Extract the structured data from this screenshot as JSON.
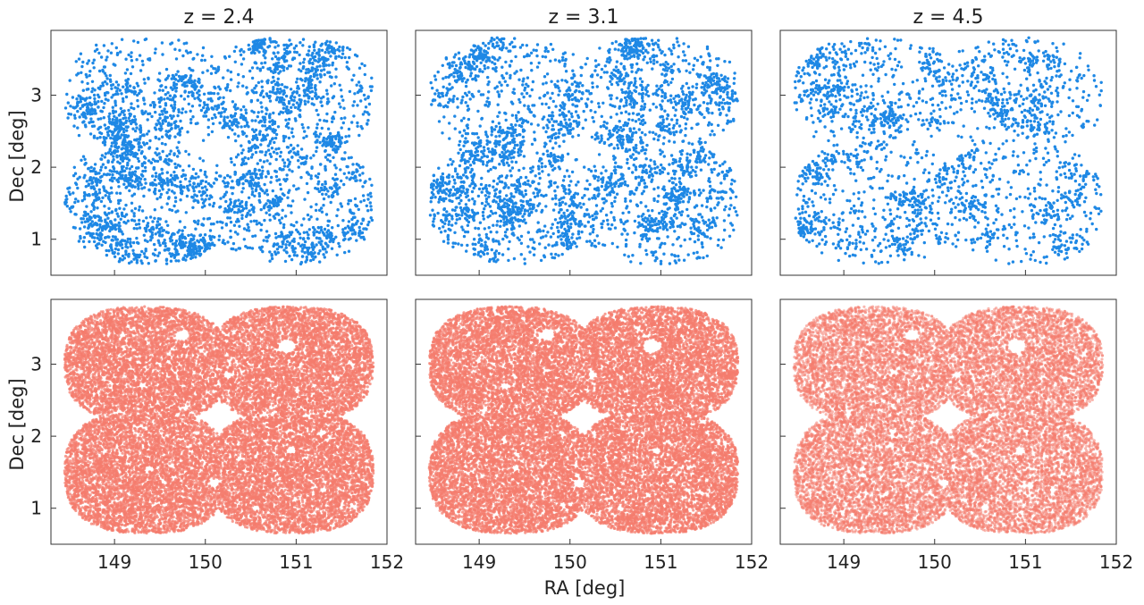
{
  "figure": {
    "xlabel": "RA [deg]",
    "ylabel": "Dec [deg]"
  },
  "chart_data": {
    "type": "scatter",
    "layout": "2 rows x 3 columns, shared axes",
    "colors": {
      "top_row": "#1e88e5",
      "bottom_row": "#f47c6e"
    },
    "xlim": [
      148.3,
      152.0
    ],
    "ylim": [
      0.5,
      3.9
    ],
    "xticks": [
      149,
      150,
      151,
      152
    ],
    "yticks": [
      1,
      2,
      3
    ],
    "grid": false,
    "legend": "none",
    "columns": [
      {
        "title": "z = 2.4",
        "top_points_approx": 3400,
        "bottom_points_approx": 22000
      },
      {
        "title": "z = 3.1",
        "top_points_approx": 3200,
        "bottom_points_approx": 22000
      },
      {
        "title": "z = 4.5",
        "top_points_approx": 2300,
        "bottom_points_approx": 20000
      }
    ],
    "footprint": {
      "description": "COSMOS-like field: union of four overlapping rounded lobes, RA 148.45–151.85, Dec 0.65–3.8",
      "ra_range": [
        148.45,
        151.85
      ],
      "dec_range": [
        0.65,
        3.8
      ]
    },
    "holes": [
      {
        "ra": 149.75,
        "dec": 3.4,
        "r": 0.08
      },
      {
        "ra": 150.9,
        "dec": 3.25,
        "r": 0.1
      },
      {
        "ra": 150.25,
        "dec": 2.85,
        "r": 0.05
      },
      {
        "ra": 149.3,
        "dec": 2.7,
        "r": 0.04
      },
      {
        "ra": 150.65,
        "dec": 2.3,
        "r": 0.04
      },
      {
        "ra": 149.05,
        "dec": 2.35,
        "r": 0.035
      },
      {
        "ra": 150.95,
        "dec": 1.8,
        "r": 0.05
      },
      {
        "ra": 149.4,
        "dec": 1.55,
        "r": 0.04
      },
      {
        "ra": 150.1,
        "dec": 1.35,
        "r": 0.06
      },
      {
        "ra": 150.55,
        "dec": 1.0,
        "r": 0.04
      },
      {
        "ra": 149.9,
        "dec": 2.05,
        "r": 0.035
      },
      {
        "ra": 151.3,
        "dec": 1.25,
        "r": 0.04
      },
      {
        "ra": 149.6,
        "dec": 3.15,
        "r": 0.03
      },
      {
        "ra": 148.9,
        "dec": 1.8,
        "r": 0.03
      },
      {
        "ra": 151.45,
        "dec": 2.8,
        "r": 0.035
      }
    ]
  }
}
